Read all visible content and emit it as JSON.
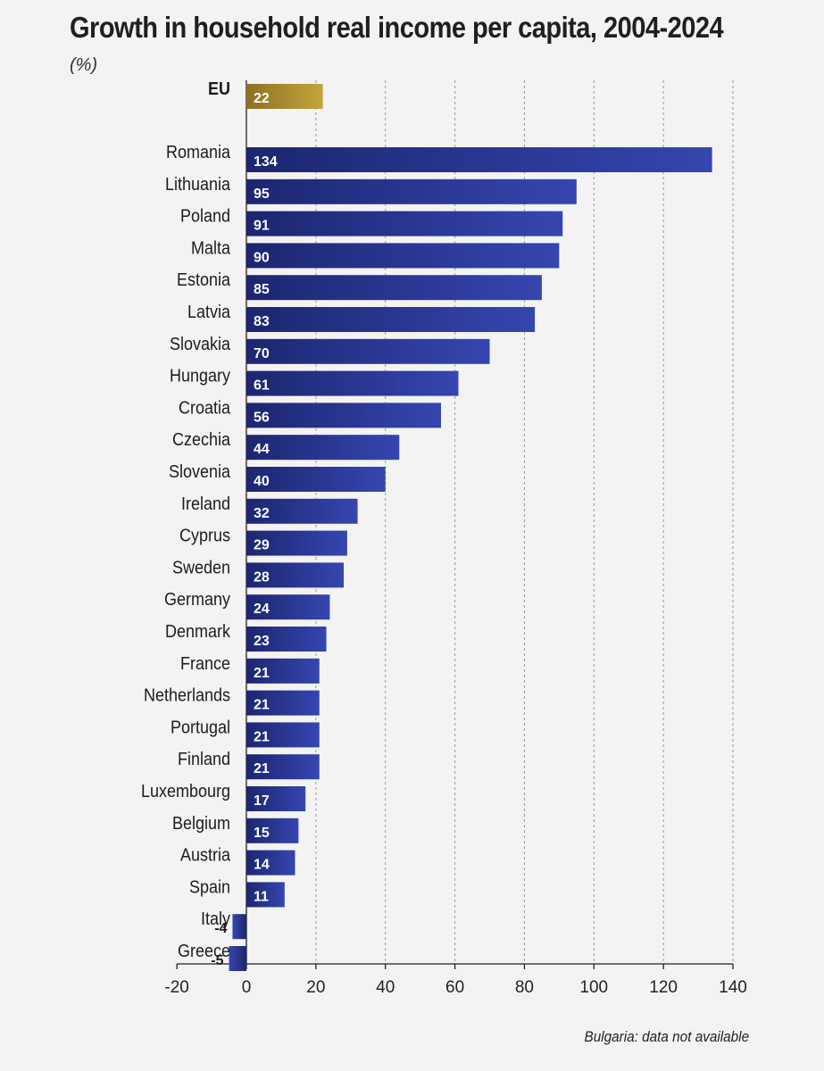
{
  "title": "Growth in household real income per capita, 2004-2024",
  "subtitle": "(%)",
  "footnote": "Bulgaria: data not available",
  "colors": {
    "eu_bar": "#b0902d",
    "country_bar": "#2a3a99",
    "grid": "#9a9a9a",
    "axis": "#222222",
    "bar_label": "#ffffff"
  },
  "chart_data": {
    "type": "bar",
    "orientation": "horizontal",
    "title": "Growth in household real income per capita, 2004-2024",
    "unit": "(%)",
    "xlim": [
      -20,
      140
    ],
    "xticks": [
      -20,
      0,
      20,
      40,
      60,
      80,
      100,
      120,
      140
    ],
    "grid": "vertical dashed",
    "highlight": {
      "category": "EU",
      "value": 22
    },
    "categories": [
      "Romania",
      "Lithuania",
      "Poland",
      "Malta",
      "Estonia",
      "Latvia",
      "Slovakia",
      "Hungary",
      "Croatia",
      "Czechia",
      "Slovenia",
      "Ireland",
      "Cyprus",
      "Sweden",
      "Germany",
      "Denmark",
      "France",
      "Netherlands",
      "Portugal",
      "Finland",
      "Luxembourg",
      "Belgium",
      "Austria",
      "Spain",
      "Italy",
      "Greece"
    ],
    "values": [
      134,
      95,
      91,
      90,
      85,
      83,
      70,
      61,
      56,
      44,
      40,
      32,
      29,
      28,
      24,
      23,
      21,
      21,
      21,
      21,
      17,
      15,
      14,
      11,
      -4,
      -5
    ]
  }
}
